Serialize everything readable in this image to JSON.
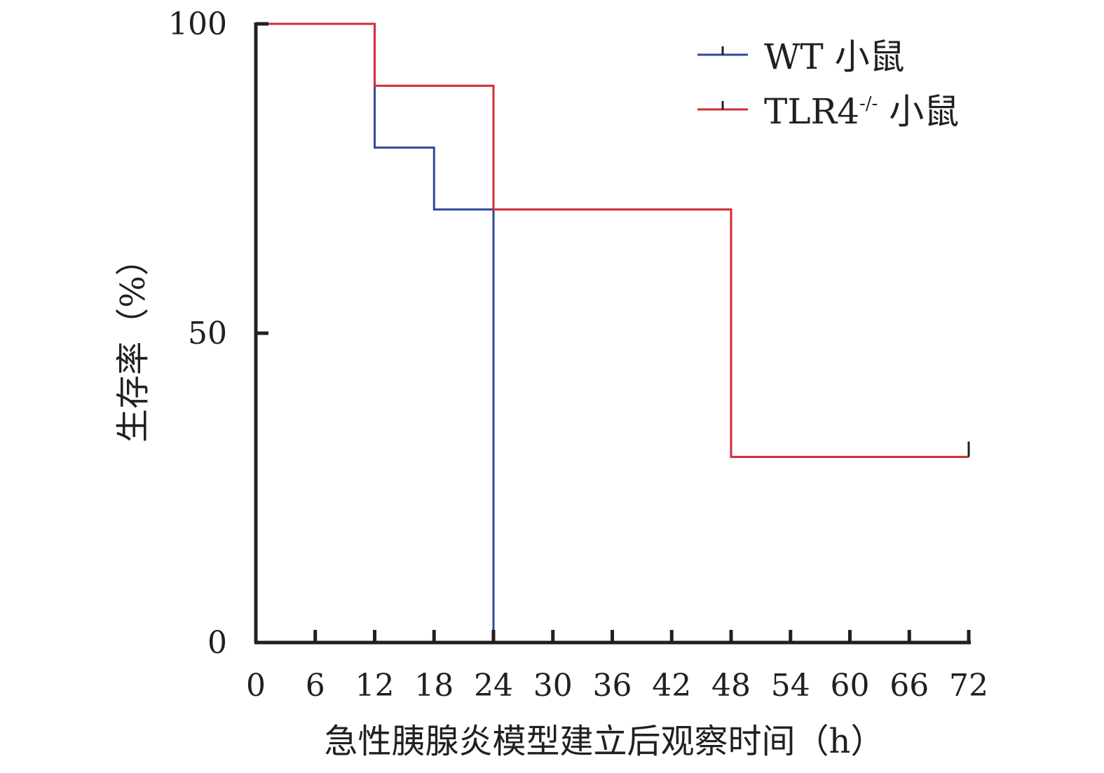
{
  "chart_data": {
    "type": "line",
    "title": "",
    "xlabel": "急性胰腺炎模型建立后观察时间（h）",
    "ylabel": "生存率（%）",
    "xlim": [
      0,
      72
    ],
    "ylim": [
      0,
      100
    ],
    "x_ticks": [
      0,
      6,
      12,
      18,
      24,
      30,
      36,
      42,
      48,
      54,
      60,
      66,
      72
    ],
    "y_ticks": [
      0,
      50,
      100
    ],
    "grid": false,
    "legend_position": "top-right",
    "series": [
      {
        "name": "WT 小鼠",
        "legend_main": "WT 小鼠",
        "legend_sup": "",
        "legend_rest": "",
        "color": "#2e4a9e",
        "step": true,
        "x": [
          0,
          12,
          18,
          24
        ],
        "y": [
          100,
          80,
          70,
          0
        ],
        "censored": []
      },
      {
        "name": "TLR4-/- 小鼠",
        "legend_main": "TLR4",
        "legend_sup": "-/-",
        "legend_rest": " 小鼠",
        "color": "#d12c35",
        "step": true,
        "x": [
          0,
          12,
          24,
          48,
          72
        ],
        "y": [
          100,
          90,
          70,
          30,
          30
        ],
        "censored": [
          72
        ]
      }
    ]
  }
}
